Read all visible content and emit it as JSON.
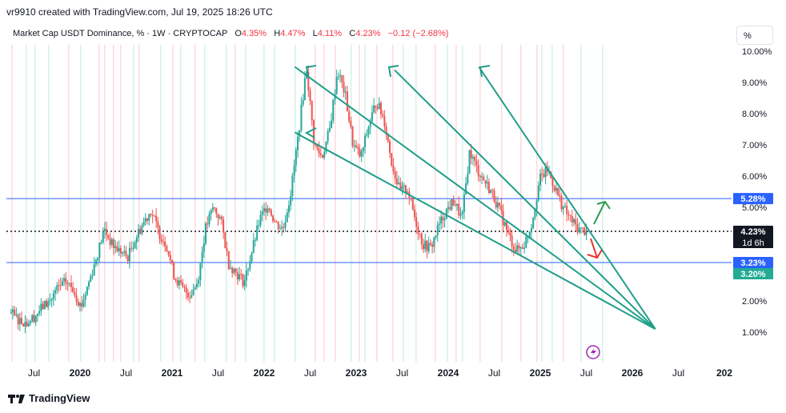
{
  "header": {
    "credit": "vr9910 created with TradingView.com, Jul 19, 2025 18:26 UTC",
    "symbol": "Market Cap USDT Dominance, % · 1W · CRYPTOCAP",
    "open_label": "O",
    "open": "4.35%",
    "high_label": "H",
    "high": "4.47%",
    "low_label": "L",
    "low": "4.11%",
    "close_label": "C",
    "close": "4.23%",
    "change": "−0.12 (−2.68%)"
  },
  "scale_button": "%",
  "footer": {
    "brand": "TradingView"
  },
  "colors": {
    "up": "#26a69a",
    "down": "#ef5350",
    "trendline": "#1f9e89",
    "hline": "#2962ff",
    "label_blue": "#2962ff",
    "label_teal": "#22ab94",
    "label_black": "#131722"
  },
  "chart_data": {
    "type": "candlestick",
    "y_axis": {
      "ticks": [
        "10.00%",
        "9.00%",
        "8.00%",
        "7.00%",
        "6.00%",
        "5.00%",
        "2.00%",
        "1.00%"
      ],
      "ylim": [
        0.0,
        10.0
      ]
    },
    "x_axis": {
      "ticks": [
        "Jul",
        "2020",
        "Jul",
        "2021",
        "Jul",
        "2022",
        "Jul",
        "2023",
        "Jul",
        "2024",
        "Jul",
        "2025",
        "Jul",
        "2026",
        "Jul",
        "202"
      ]
    },
    "price_labels": [
      {
        "text": "5.28%",
        "value": 5.28,
        "style": "blue"
      },
      {
        "text": "4.23%",
        "value": 4.23,
        "style": "black",
        "sub": "1d 6h"
      },
      {
        "text": "3.23%",
        "value": 3.23,
        "style": "blue"
      },
      {
        "text": "3.20%",
        "value": 3.2,
        "style": "teal"
      }
    ],
    "horizontal_lines": [
      5.28,
      3.23
    ],
    "current_price": 4.23,
    "series": [
      {
        "values": [
          1.6,
          1.4,
          1.3,
          1.5,
          1.8,
          2.0,
          2.4,
          2.6,
          2.4,
          1.8,
          2.6,
          3.4,
          4.3,
          3.8,
          3.6,
          3.4,
          4.0,
          4.5,
          4.9,
          4.2,
          3.8,
          2.8,
          2.4,
          2.2,
          2.6,
          4.3,
          5.0,
          4.6,
          3.2,
          2.9,
          2.6,
          3.6,
          4.6,
          5.1,
          4.5,
          4.3,
          5.5,
          7.4,
          9.5,
          7.0,
          6.6,
          7.5,
          9.4,
          8.6,
          7.0,
          6.6,
          7.6,
          8.4,
          7.8,
          6.4,
          5.5,
          5.6,
          4.6,
          3.8,
          3.7,
          4.4,
          4.9,
          5.2,
          4.6,
          6.8,
          6.2,
          5.8,
          5.4,
          4.8,
          4.1,
          3.6,
          3.8,
          4.5,
          5.9,
          6.2,
          5.6,
          5.0,
          4.6,
          4.3,
          4.23
        ]
      }
    ],
    "timeline": {
      "start": "2019-04",
      "end": "2025-07"
    },
    "trendlines": [
      {
        "from": [
          "2022-05",
          9.5
        ],
        "to": [
          "2026-04",
          1.1
        ]
      },
      {
        "from": [
          "2022-05",
          7.4
        ],
        "to": [
          "2026-04",
          1.1
        ]
      },
      {
        "from": [
          "2023-06",
          9.4
        ],
        "to": [
          "2026-04",
          1.1
        ]
      },
      {
        "from": [
          "2024-05",
          9.5
        ],
        "to": [
          "2026-04",
          1.1
        ]
      }
    ],
    "arrows": [
      {
        "direction": "up",
        "color": "green"
      },
      {
        "direction": "down",
        "color": "red"
      }
    ]
  }
}
